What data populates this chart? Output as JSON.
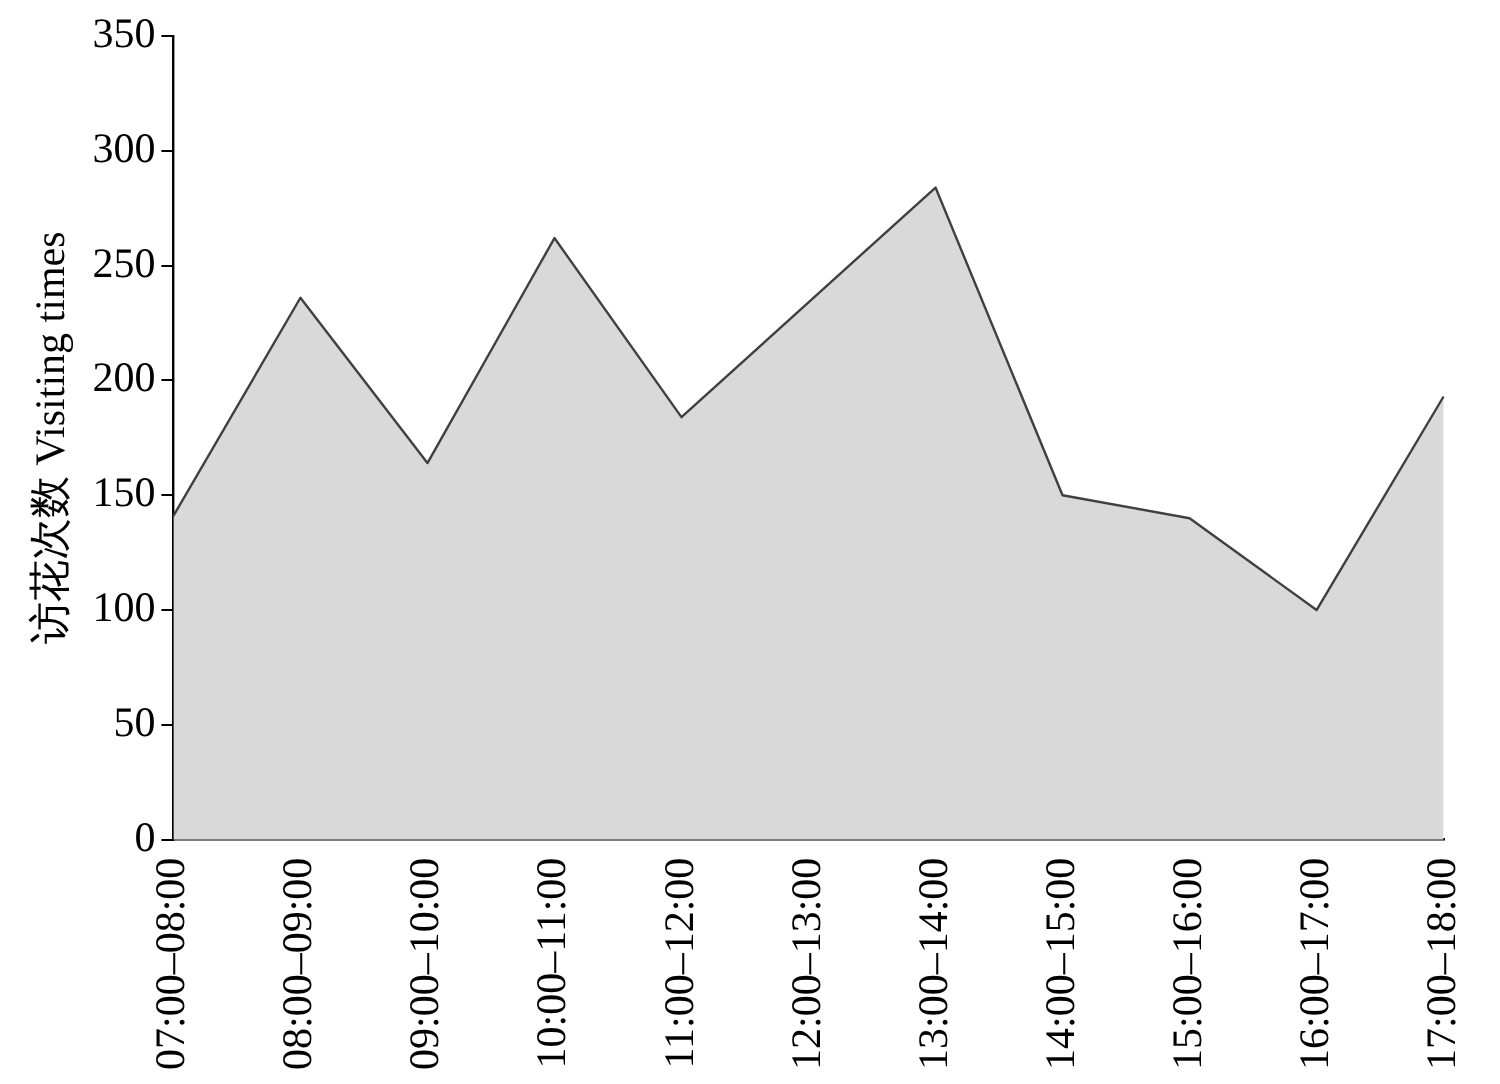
{
  "chart_data": {
    "type": "area",
    "ylabel": "访花次数 Visiting times",
    "categories": [
      "07:00–08:00",
      "08:00–09:00",
      "09:00–10:00",
      "10:00–11:00",
      "11:00–12:00",
      "12:00–13:00",
      "13:00–14:00",
      "14:00–15:00",
      "15:00–16:00",
      "16:00–17:00",
      "17:00–18:00"
    ],
    "series": [
      {
        "color": "#d9d9d9",
        "values": [
          141,
          236,
          164,
          262,
          184,
          234,
          284,
          150,
          140,
          100,
          193
        ]
      }
    ],
    "ylim": [
      0,
      350
    ],
    "yticks": [
      0,
      50,
      100,
      150,
      200,
      250,
      300,
      350
    ],
    "grid": false,
    "legend": false
  }
}
